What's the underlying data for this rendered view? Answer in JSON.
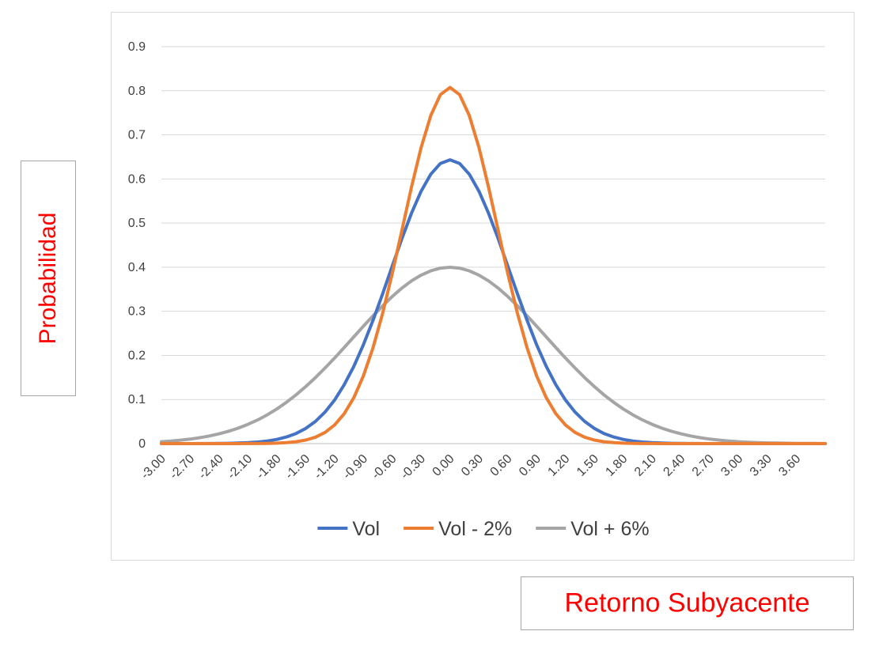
{
  "chart_data": {
    "type": "line",
    "ylim": [
      0,
      0.9
    ],
    "yticks": [
      "0",
      "0.1",
      "0.2",
      "0.3",
      "0.4",
      "0.5",
      "0.6",
      "0.7",
      "0.8",
      "0.9"
    ],
    "xticks": [
      "-3.00",
      "-2.70",
      "-2.40",
      "-2.10",
      "-1.80",
      "-1.50",
      "-1.20",
      "-0.90",
      "-0.60",
      "-0.30",
      "0.00",
      "0.30",
      "0.60",
      "0.90",
      "1.20",
      "1.50",
      "1.80",
      "2.10",
      "2.40",
      "2.70",
      "3.00",
      "3.30",
      "3.60"
    ],
    "xlim": [
      -3.0,
      3.9
    ],
    "xlabel": "Retorno Subyacente",
    "ylabel": "Probabilidad",
    "grid": "horizontal",
    "legend": "bottom",
    "series": [
      {
        "name": "Vol",
        "color": "#4472c4",
        "sigma": 0.62
      },
      {
        "name": "Vol  - 2%",
        "color": "#ed7d31",
        "sigma": 0.494
      },
      {
        "name": "Vol + 6%",
        "color": "#a5a5a5",
        "sigma": 0.998
      }
    ]
  }
}
